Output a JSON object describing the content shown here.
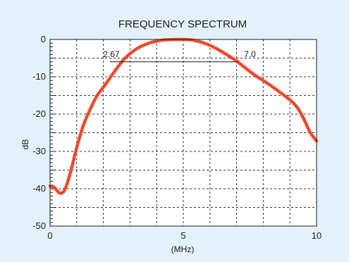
{
  "chart_data": {
    "type": "line",
    "title": "FREQUENCY SPECTRUM",
    "xlabel": "(MHz)",
    "ylabel": "dB",
    "xlim": [
      0,
      10
    ],
    "ylim": [
      -50,
      0
    ],
    "grid": true,
    "legend": "none",
    "x_ticks": [
      {
        "value": 0,
        "label": "0"
      },
      {
        "value": 5,
        "label": "5"
      },
      {
        "value": 10,
        "label": "10"
      }
    ],
    "y_ticks": [
      {
        "value": 0,
        "label": "0"
      },
      {
        "value": -10,
        "label": "-10"
      },
      {
        "value": -20,
        "label": "-20"
      },
      {
        "value": -30,
        "label": "-30"
      },
      {
        "value": -40,
        "label": "-40"
      },
      {
        "value": -50,
        "label": "-50"
      }
    ],
    "series": [
      {
        "color": "#ee4a2e",
        "points": [
          [
            0.0,
            -39.3
          ],
          [
            0.15,
            -39.6
          ],
          [
            0.3,
            -40.8
          ],
          [
            0.4,
            -41.2
          ],
          [
            0.55,
            -40.3
          ],
          [
            0.75,
            -36.0
          ],
          [
            1.0,
            -29.0
          ],
          [
            1.25,
            -23.0
          ],
          [
            1.5,
            -18.8
          ],
          [
            1.75,
            -15.2
          ],
          [
            2.0,
            -12.8
          ],
          [
            2.25,
            -10.3
          ],
          [
            2.5,
            -7.8
          ],
          [
            2.75,
            -5.5
          ],
          [
            3.0,
            -3.8
          ],
          [
            3.25,
            -2.5
          ],
          [
            3.5,
            -1.6
          ],
          [
            3.75,
            -0.9
          ],
          [
            4.0,
            -0.45
          ],
          [
            4.25,
            -0.15
          ],
          [
            4.5,
            -0.05
          ],
          [
            4.75,
            0.0
          ],
          [
            5.0,
            0.0
          ],
          [
            5.25,
            -0.1
          ],
          [
            5.5,
            -0.4
          ],
          [
            5.75,
            -0.9
          ],
          [
            6.0,
            -1.6
          ],
          [
            6.25,
            -2.5
          ],
          [
            6.5,
            -3.5
          ],
          [
            6.75,
            -4.6
          ],
          [
            7.0,
            -5.8
          ],
          [
            7.25,
            -7.2
          ],
          [
            7.5,
            -8.6
          ],
          [
            7.75,
            -9.9
          ],
          [
            8.0,
            -11.0
          ],
          [
            8.25,
            -12.2
          ],
          [
            8.5,
            -13.5
          ],
          [
            8.75,
            -14.8
          ],
          [
            9.0,
            -16.2
          ],
          [
            9.25,
            -18.0
          ],
          [
            9.5,
            -21.0
          ],
          [
            9.75,
            -24.8
          ],
          [
            10.0,
            -27.2
          ]
        ]
      }
    ],
    "annotations": {
      "line_y": -6,
      "x_start": 2.67,
      "x_end": 7.0,
      "left_label": "2.67",
      "right_label": "7.0",
      "left_label_x": 2.3,
      "right_label_x": 7.5,
      "label_y": -4.7
    },
    "colors": {
      "background": "#e4f1fa",
      "plot_background": "#ffffff",
      "line": "#ee4a2e"
    }
  }
}
